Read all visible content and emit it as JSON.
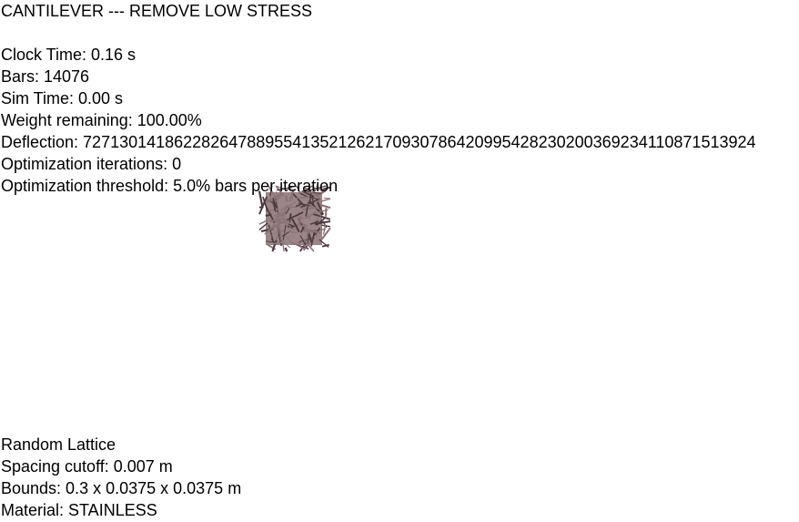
{
  "header": {
    "title": "CANTILEVER --- REMOVE LOW STRESS"
  },
  "stats": {
    "clock_time": "Clock Time: 0.16 s",
    "bars": "Bars: 14076",
    "sim_time": "Sim Time: 0.00 s",
    "weight_remaining": "Weight remaining: 100.00%",
    "deflection": "Deflection: 72713014186228264788955413521262170930786420995428230200369234110871513924",
    "optimization_iterations": "Optimization iterations: 0",
    "optimization_threshold": "Optimization threshold: 5.0% bars per iteration"
  },
  "footer": {
    "lattice_type": "Random Lattice",
    "spacing_cutoff": "Spacing cutoff: 0.007 m",
    "bounds": "Bounds: 0.3 x 0.0375 x 0.0375 m",
    "material": "Material: STAINLESS"
  },
  "colors": {
    "background": "#ffffff",
    "text": "#000000",
    "lattice_bar_light": "#8a7478",
    "lattice_bar_dark": "#4a3a3e"
  }
}
